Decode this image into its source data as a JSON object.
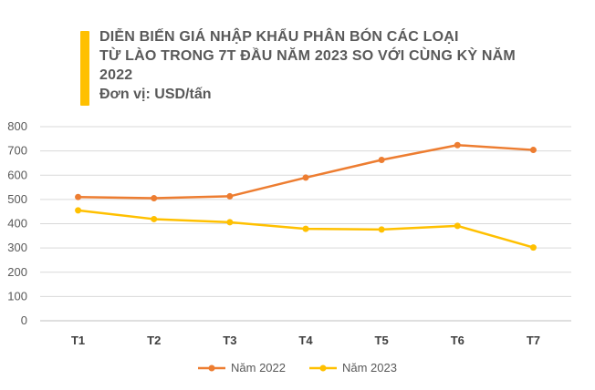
{
  "title": {
    "line1": "DIỄN BIẾN GIÁ NHẬP KHẨU PHÂN BÓN CÁC LOẠI",
    "line2": "TỪ LÀO TRONG 7T ĐẦU NĂM 2023 SO VỚI CÙNG KỲ NĂM",
    "line3": "2022",
    "unit": "Đơn vị: USD/tấn"
  },
  "chart_data": {
    "type": "line",
    "categories": [
      "T1",
      "T2",
      "T3",
      "T4",
      "T5",
      "T6",
      "T7"
    ],
    "series": [
      {
        "name": "Năm 2022",
        "color": "#ed7d31",
        "values": [
          510,
          505,
          513,
          590,
          663,
          724,
          704
        ]
      },
      {
        "name": "Năm 2023",
        "color": "#ffc000",
        "values": [
          455,
          419,
          406,
          379,
          376,
          391,
          302
        ]
      }
    ],
    "yticks": [
      0,
      100,
      200,
      300,
      400,
      500,
      600,
      700,
      800
    ],
    "ylim": [
      0,
      800
    ],
    "grid": true,
    "legend_position": "bottom"
  },
  "colors": {
    "accent_bar": "#ffc000"
  }
}
